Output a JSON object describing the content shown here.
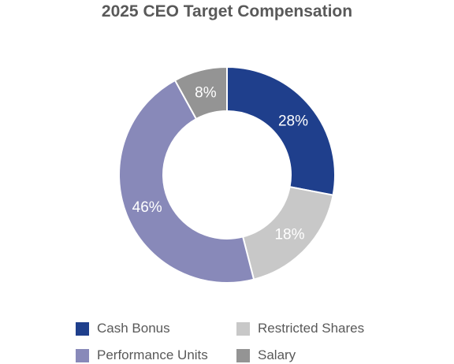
{
  "chart_data": {
    "type": "pie",
    "title": "2025 CEO Target Compensation",
    "slices": [
      {
        "name": "Cash Bonus",
        "value": 28,
        "label": "28%",
        "color": "#1f3f8c"
      },
      {
        "name": "Restricted Shares",
        "value": 18,
        "label": "18%",
        "color": "#c8c8c8"
      },
      {
        "name": "Performance Units",
        "value": 46,
        "label": "46%",
        "color": "#8889b9"
      },
      {
        "name": "Salary",
        "value": 8,
        "label": "8%",
        "color": "#949494"
      }
    ],
    "legend": {
      "placement": "bottom",
      "entries": [
        "Cash Bonus",
        "Restricted Shares",
        "Performance Units",
        "Salary"
      ]
    }
  }
}
